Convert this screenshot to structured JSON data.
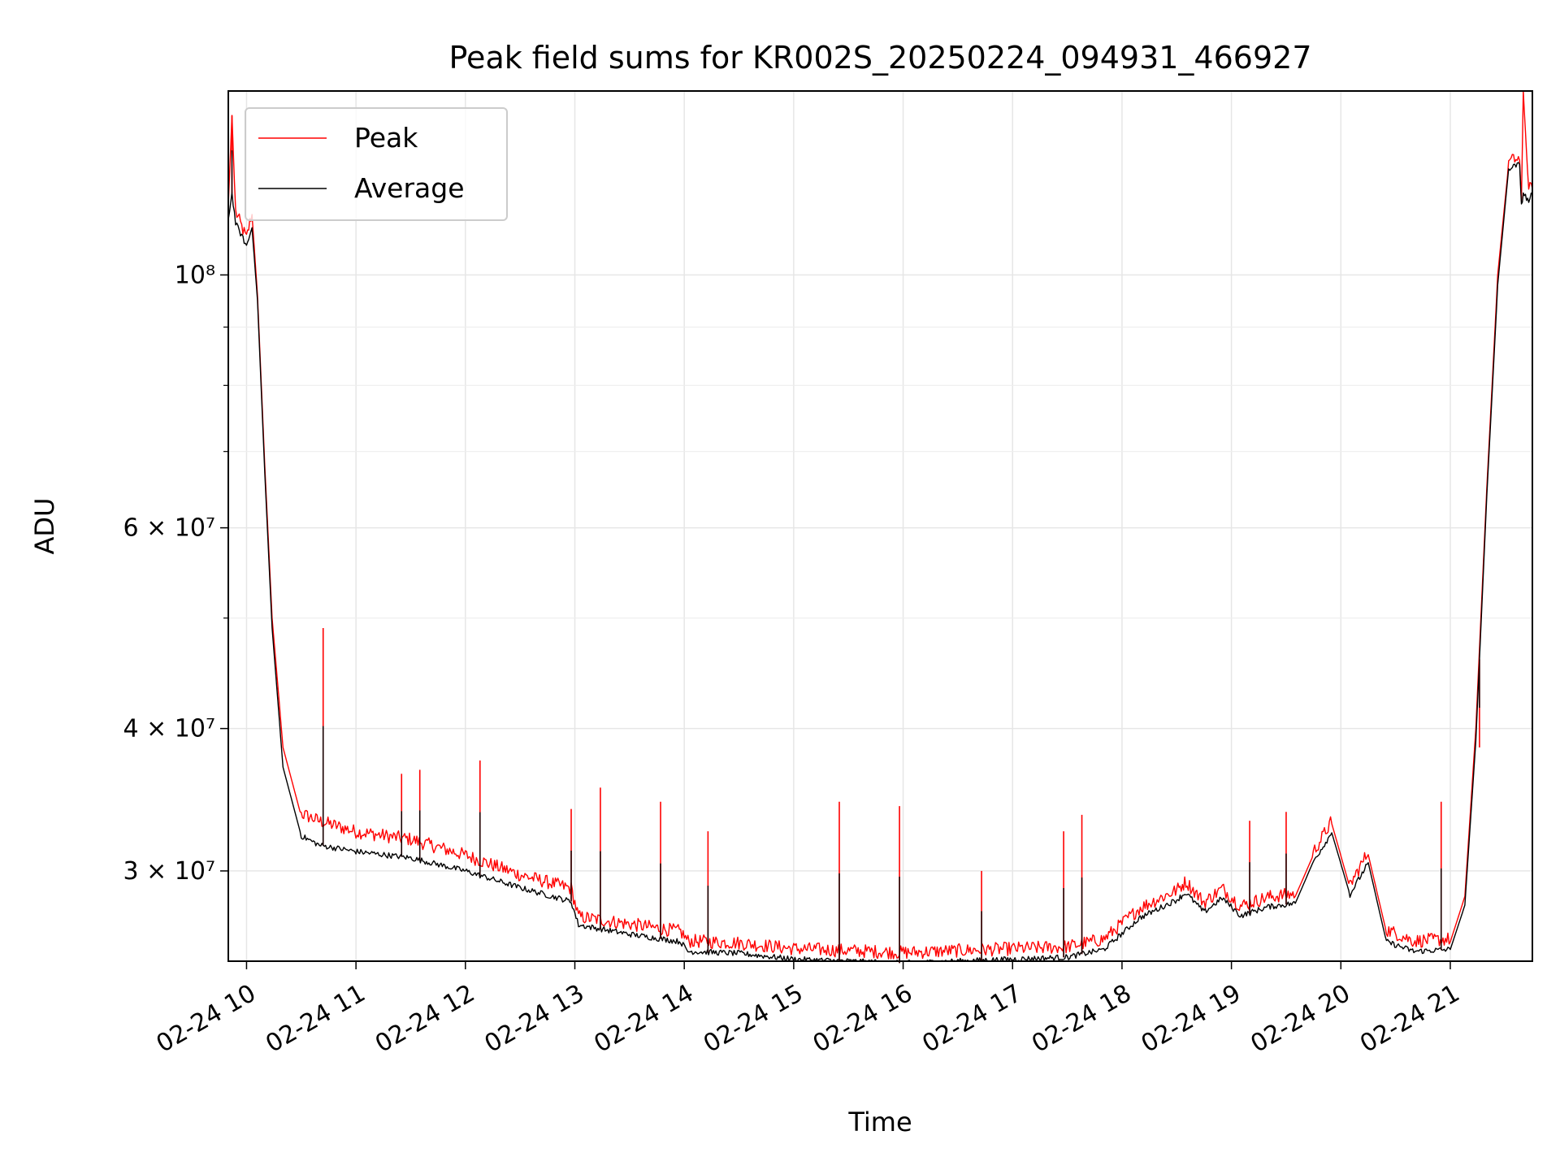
{
  "chart_data": {
    "type": "line",
    "title": "Peak field sums for KR002S_20250224_094931_466927",
    "xlabel": "Time",
    "ylabel": "ADU",
    "y_scale": "log",
    "ylim": [
      25000000,
      145000000
    ],
    "xlim": [
      "2025-02-24 09:50",
      "2025-02-24 21:45"
    ],
    "grid": true,
    "legend_position": "top-left",
    "x_ticks": [
      {
        "t": "2025-02-24 10:00",
        "label": "02-24 10"
      },
      {
        "t": "2025-02-24 11:00",
        "label": "02-24 11"
      },
      {
        "t": "2025-02-24 12:00",
        "label": "02-24 12"
      },
      {
        "t": "2025-02-24 13:00",
        "label": "02-24 13"
      },
      {
        "t": "2025-02-24 14:00",
        "label": "02-24 14"
      },
      {
        "t": "2025-02-24 15:00",
        "label": "02-24 15"
      },
      {
        "t": "2025-02-24 16:00",
        "label": "02-24 16"
      },
      {
        "t": "2025-02-24 17:00",
        "label": "02-24 17"
      },
      {
        "t": "2025-02-24 18:00",
        "label": "02-24 18"
      },
      {
        "t": "2025-02-24 19:00",
        "label": "02-24 19"
      },
      {
        "t": "2025-02-24 20:00",
        "label": "02-24 20"
      },
      {
        "t": "2025-02-24 21:00",
        "label": "02-24 21"
      }
    ],
    "y_ticks_major": [
      {
        "v": 30000000,
        "label": "3 × 10⁷"
      },
      {
        "v": 40000000,
        "label": "4 × 10⁷"
      },
      {
        "v": 60000000,
        "label": "6 × 10⁷"
      },
      {
        "v": 100000000,
        "label": "10⁸"
      }
    ],
    "y_ticks_minor": [
      50000000,
      70000000,
      80000000,
      90000000
    ],
    "series": [
      {
        "name": "Peak",
        "color": "#ff0000",
        "points": [
          [
            "2025-02-24 09:50",
            115000000
          ],
          [
            "2025-02-24 09:52",
            138000000
          ],
          [
            "2025-02-24 09:54",
            113000000
          ],
          [
            "2025-02-24 10:00",
            107000000
          ],
          [
            "2025-02-24 10:03",
            113000000
          ],
          [
            "2025-02-24 10:06",
            96000000
          ],
          [
            "2025-02-24 10:10",
            68000000
          ],
          [
            "2025-02-24 10:14",
            50000000
          ],
          [
            "2025-02-24 10:20",
            38500000
          ],
          [
            "2025-02-24 10:30",
            33500000
          ],
          [
            "2025-02-24 10:40",
            33000000
          ],
          [
            "2025-02-24 11:00",
            32300000
          ],
          [
            "2025-02-24 11:30",
            31800000
          ],
          [
            "2025-02-24 12:00",
            30800000
          ],
          [
            "2025-02-24 12:30",
            29600000
          ],
          [
            "2025-02-24 12:58",
            28800000
          ],
          [
            "2025-02-24 13:02",
            27200000
          ],
          [
            "2025-02-24 13:30",
            26800000
          ],
          [
            "2025-02-24 13:58",
            26400000
          ],
          [
            "2025-02-24 14:02",
            25900000
          ],
          [
            "2025-02-24 14:30",
            25800000
          ],
          [
            "2025-02-24 15:00",
            25500000
          ],
          [
            "2025-02-24 15:30",
            25400000
          ],
          [
            "2025-02-24 16:00",
            25300000
          ],
          [
            "2025-02-24 16:30",
            25400000
          ],
          [
            "2025-02-24 17:00",
            25500000
          ],
          [
            "2025-02-24 17:30",
            25600000
          ],
          [
            "2025-02-24 17:50",
            26000000
          ],
          [
            "2025-02-24 18:10",
            27700000
          ],
          [
            "2025-02-24 18:30",
            28700000
          ],
          [
            "2025-02-24 18:35",
            29200000
          ],
          [
            "2025-02-24 18:45",
            28000000
          ],
          [
            "2025-02-24 18:55",
            28800000
          ],
          [
            "2025-02-24 19:05",
            27800000
          ],
          [
            "2025-02-24 19:20",
            28300000
          ],
          [
            "2025-02-24 19:35",
            28500000
          ],
          [
            "2025-02-24 19:45",
            31000000
          ],
          [
            "2025-02-24 19:55",
            33000000
          ],
          [
            "2025-02-24 20:05",
            29000000
          ],
          [
            "2025-02-24 20:15",
            31000000
          ],
          [
            "2025-02-24 20:25",
            26500000
          ],
          [
            "2025-02-24 20:40",
            25900000
          ],
          [
            "2025-02-24 21:00",
            26000000
          ],
          [
            "2025-02-24 21:08",
            28500000
          ],
          [
            "2025-02-24 21:14",
            40000000
          ],
          [
            "2025-02-24 21:20",
            65000000
          ],
          [
            "2025-02-24 21:26",
            100000000
          ],
          [
            "2025-02-24 21:32",
            125000000
          ],
          [
            "2025-02-24 21:38",
            126000000
          ],
          [
            "2025-02-24 21:39",
            116000000
          ],
          [
            "2025-02-24 21:40",
            145000000
          ],
          [
            "2025-02-24 21:43",
            118000000
          ],
          [
            "2025-02-24 21:45",
            119000000
          ]
        ]
      },
      {
        "name": "Average",
        "color": "#000000",
        "points": [
          [
            "2025-02-24 09:50",
            112000000
          ],
          [
            "2025-02-24 09:52",
            118000000
          ],
          [
            "2025-02-24 09:54",
            111000000
          ],
          [
            "2025-02-24 10:00",
            106000000
          ],
          [
            "2025-02-24 10:03",
            110000000
          ],
          [
            "2025-02-24 10:06",
            95000000
          ],
          [
            "2025-02-24 10:10",
            67000000
          ],
          [
            "2025-02-24 10:14",
            49000000
          ],
          [
            "2025-02-24 10:20",
            37000000
          ],
          [
            "2025-02-24 10:30",
            32200000
          ],
          [
            "2025-02-24 10:40",
            31600000
          ],
          [
            "2025-02-24 11:00",
            31200000
          ],
          [
            "2025-02-24 11:30",
            30800000
          ],
          [
            "2025-02-24 12:00",
            30000000
          ],
          [
            "2025-02-24 12:30",
            29000000
          ],
          [
            "2025-02-24 12:58",
            28200000
          ],
          [
            "2025-02-24 13:02",
            26900000
          ],
          [
            "2025-02-24 13:30",
            26400000
          ],
          [
            "2025-02-24 13:58",
            26000000
          ],
          [
            "2025-02-24 14:02",
            25500000
          ],
          [
            "2025-02-24 14:30",
            25400000
          ],
          [
            "2025-02-24 15:00",
            25100000
          ],
          [
            "2025-02-24 15:30",
            25000000
          ],
          [
            "2025-02-24 16:00",
            24900000
          ],
          [
            "2025-02-24 16:30",
            25000000
          ],
          [
            "2025-02-24 17:00",
            25100000
          ],
          [
            "2025-02-24 17:30",
            25200000
          ],
          [
            "2025-02-24 17:50",
            25600000
          ],
          [
            "2025-02-24 18:10",
            27300000
          ],
          [
            "2025-02-24 18:30",
            28300000
          ],
          [
            "2025-02-24 18:35",
            28700000
          ],
          [
            "2025-02-24 18:45",
            27600000
          ],
          [
            "2025-02-24 18:55",
            28400000
          ],
          [
            "2025-02-24 19:05",
            27400000
          ],
          [
            "2025-02-24 19:20",
            27900000
          ],
          [
            "2025-02-24 19:35",
            28100000
          ],
          [
            "2025-02-24 19:45",
            30600000
          ],
          [
            "2025-02-24 19:55",
            32400000
          ],
          [
            "2025-02-24 20:05",
            28600000
          ],
          [
            "2025-02-24 20:15",
            30500000
          ],
          [
            "2025-02-24 20:25",
            26000000
          ],
          [
            "2025-02-24 20:40",
            25500000
          ],
          [
            "2025-02-24 21:00",
            25600000
          ],
          [
            "2025-02-24 21:08",
            28000000
          ],
          [
            "2025-02-24 21:14",
            39000000
          ],
          [
            "2025-02-24 21:20",
            64000000
          ],
          [
            "2025-02-24 21:26",
            98000000
          ],
          [
            "2025-02-24 21:32",
            124000000
          ],
          [
            "2025-02-24 21:38",
            125000000
          ],
          [
            "2025-02-24 21:39",
            115000000
          ],
          [
            "2025-02-24 21:40",
            118000000
          ],
          [
            "2025-02-24 21:43",
            116000000
          ],
          [
            "2025-02-24 21:45",
            118000000
          ]
        ]
      }
    ],
    "spikes": [
      {
        "t": "2025-02-24 09:52",
        "v": 138000000
      },
      {
        "t": "2025-02-24 10:42",
        "v": 49000000
      },
      {
        "t": "2025-02-24 11:25",
        "v": 36500000
      },
      {
        "t": "2025-02-24 11:35",
        "v": 36800000
      },
      {
        "t": "2025-02-24 12:08",
        "v": 37500000
      },
      {
        "t": "2025-02-24 12:58",
        "v": 34000000
      },
      {
        "t": "2025-02-24 13:14",
        "v": 35500000
      },
      {
        "t": "2025-02-24 13:47",
        "v": 34500000
      },
      {
        "t": "2025-02-24 14:13",
        "v": 32500000
      },
      {
        "t": "2025-02-24 15:25",
        "v": 34500000
      },
      {
        "t": "2025-02-24 15:58",
        "v": 34200000
      },
      {
        "t": "2025-02-24 16:43",
        "v": 30000000
      },
      {
        "t": "2025-02-24 17:28",
        "v": 32500000
      },
      {
        "t": "2025-02-24 17:38",
        "v": 33600000
      },
      {
        "t": "2025-02-24 19:10",
        "v": 33200000
      },
      {
        "t": "2025-02-24 19:30",
        "v": 33800000
      },
      {
        "t": "2025-02-24 20:55",
        "v": 34500000
      },
      {
        "t": "2025-02-24 21:16",
        "v": 38500000
      }
    ]
  }
}
